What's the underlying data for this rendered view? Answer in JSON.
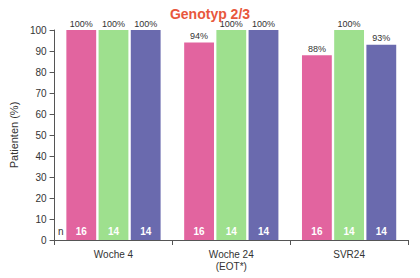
{
  "chart_data": {
    "type": "bar",
    "title": "Genotyp 2/3",
    "categories": [
      "Woche 4",
      "Woche 24\n(EOT*)",
      "SVR24"
    ],
    "y_label": "Patienten (%)",
    "n_label": "n",
    "series": [
      {
        "color": "#e2649f",
        "values": [
          100,
          94,
          88
        ],
        "value_labels": [
          "100%",
          "94%",
          "88%"
        ],
        "n": [
          16,
          16,
          16
        ]
      },
      {
        "color": "#9ee08e",
        "values": [
          100,
          100,
          100
        ],
        "value_labels": [
          "100%",
          "100%",
          "100%"
        ],
        "n": [
          14,
          14,
          14
        ]
      },
      {
        "color": "#6a6aae",
        "values": [
          100,
          100,
          93
        ],
        "value_labels": [
          "100%",
          "100%",
          "93%"
        ],
        "n": [
          14,
          14,
          14
        ]
      }
    ],
    "ylim": [
      0,
      100
    ],
    "yticks": [
      0,
      10,
      20,
      30,
      40,
      50,
      60,
      70,
      80,
      90,
      100
    ],
    "grid": false,
    "data_labels": true
  }
}
